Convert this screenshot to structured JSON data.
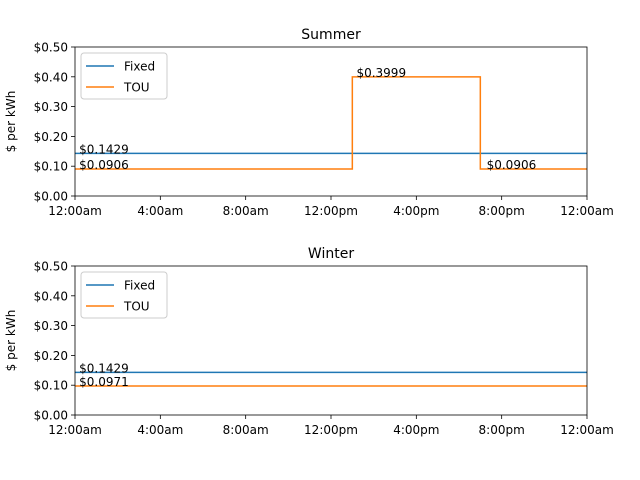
{
  "chart_data": [
    {
      "type": "line",
      "title": "Summer",
      "xlabel": "",
      "ylabel": "$ per kWh",
      "xlim": [
        0,
        24
      ],
      "ylim": [
        0,
        0.5
      ],
      "x_ticks": [
        0,
        4,
        8,
        12,
        16,
        20,
        24
      ],
      "x_tick_labels": [
        "12:00am",
        "4:00am",
        "8:00am",
        "12:00pm",
        "4:00pm",
        "8:00pm",
        "12:00am"
      ],
      "y_ticks": [
        0,
        0.1,
        0.2,
        0.3,
        0.4,
        0.5
      ],
      "y_tick_labels": [
        "$0.00",
        "$0.10",
        "$0.20",
        "$0.30",
        "$0.40",
        "$0.50"
      ],
      "legend_position": "top-left",
      "grid": false,
      "series": [
        {
          "name": "Fixed",
          "color": "#1f77b4",
          "x": [
            0,
            24
          ],
          "y": [
            0.1429,
            0.1429
          ]
        },
        {
          "name": "TOU",
          "color": "#ff7f0e",
          "x": [
            0,
            13,
            13,
            19,
            19,
            24
          ],
          "y": [
            0.0906,
            0.0906,
            0.3999,
            0.3999,
            0.0906,
            0.0906
          ]
        }
      ],
      "annotations": [
        {
          "text": "$0.1429",
          "x": 0.1,
          "y": 0.1429
        },
        {
          "text": "$0.0906",
          "x": 0.1,
          "y": 0.0906
        },
        {
          "text": "$0.3999",
          "x": 13.1,
          "y": 0.3999
        },
        {
          "text": "$0.0906",
          "x": 19.2,
          "y": 0.0906
        }
      ]
    },
    {
      "type": "line",
      "title": "Winter",
      "xlabel": "",
      "ylabel": "$ per kWh",
      "xlim": [
        0,
        24
      ],
      "ylim": [
        0,
        0.5
      ],
      "x_ticks": [
        0,
        4,
        8,
        12,
        16,
        20,
        24
      ],
      "x_tick_labels": [
        "12:00am",
        "4:00am",
        "8:00am",
        "12:00pm",
        "4:00pm",
        "8:00pm",
        "12:00am"
      ],
      "y_ticks": [
        0,
        0.1,
        0.2,
        0.3,
        0.4,
        0.5
      ],
      "y_tick_labels": [
        "$0.00",
        "$0.10",
        "$0.20",
        "$0.30",
        "$0.40",
        "$0.50"
      ],
      "legend_position": "top-left",
      "grid": false,
      "series": [
        {
          "name": "Fixed",
          "color": "#1f77b4",
          "x": [
            0,
            24
          ],
          "y": [
            0.1429,
            0.1429
          ]
        },
        {
          "name": "TOU",
          "color": "#ff7f0e",
          "x": [
            0,
            24
          ],
          "y": [
            0.0971,
            0.0971
          ]
        }
      ],
      "annotations": [
        {
          "text": "$0.1429",
          "x": 0.1,
          "y": 0.1429
        },
        {
          "text": "$0.0971",
          "x": 0.1,
          "y": 0.0971
        }
      ]
    }
  ]
}
